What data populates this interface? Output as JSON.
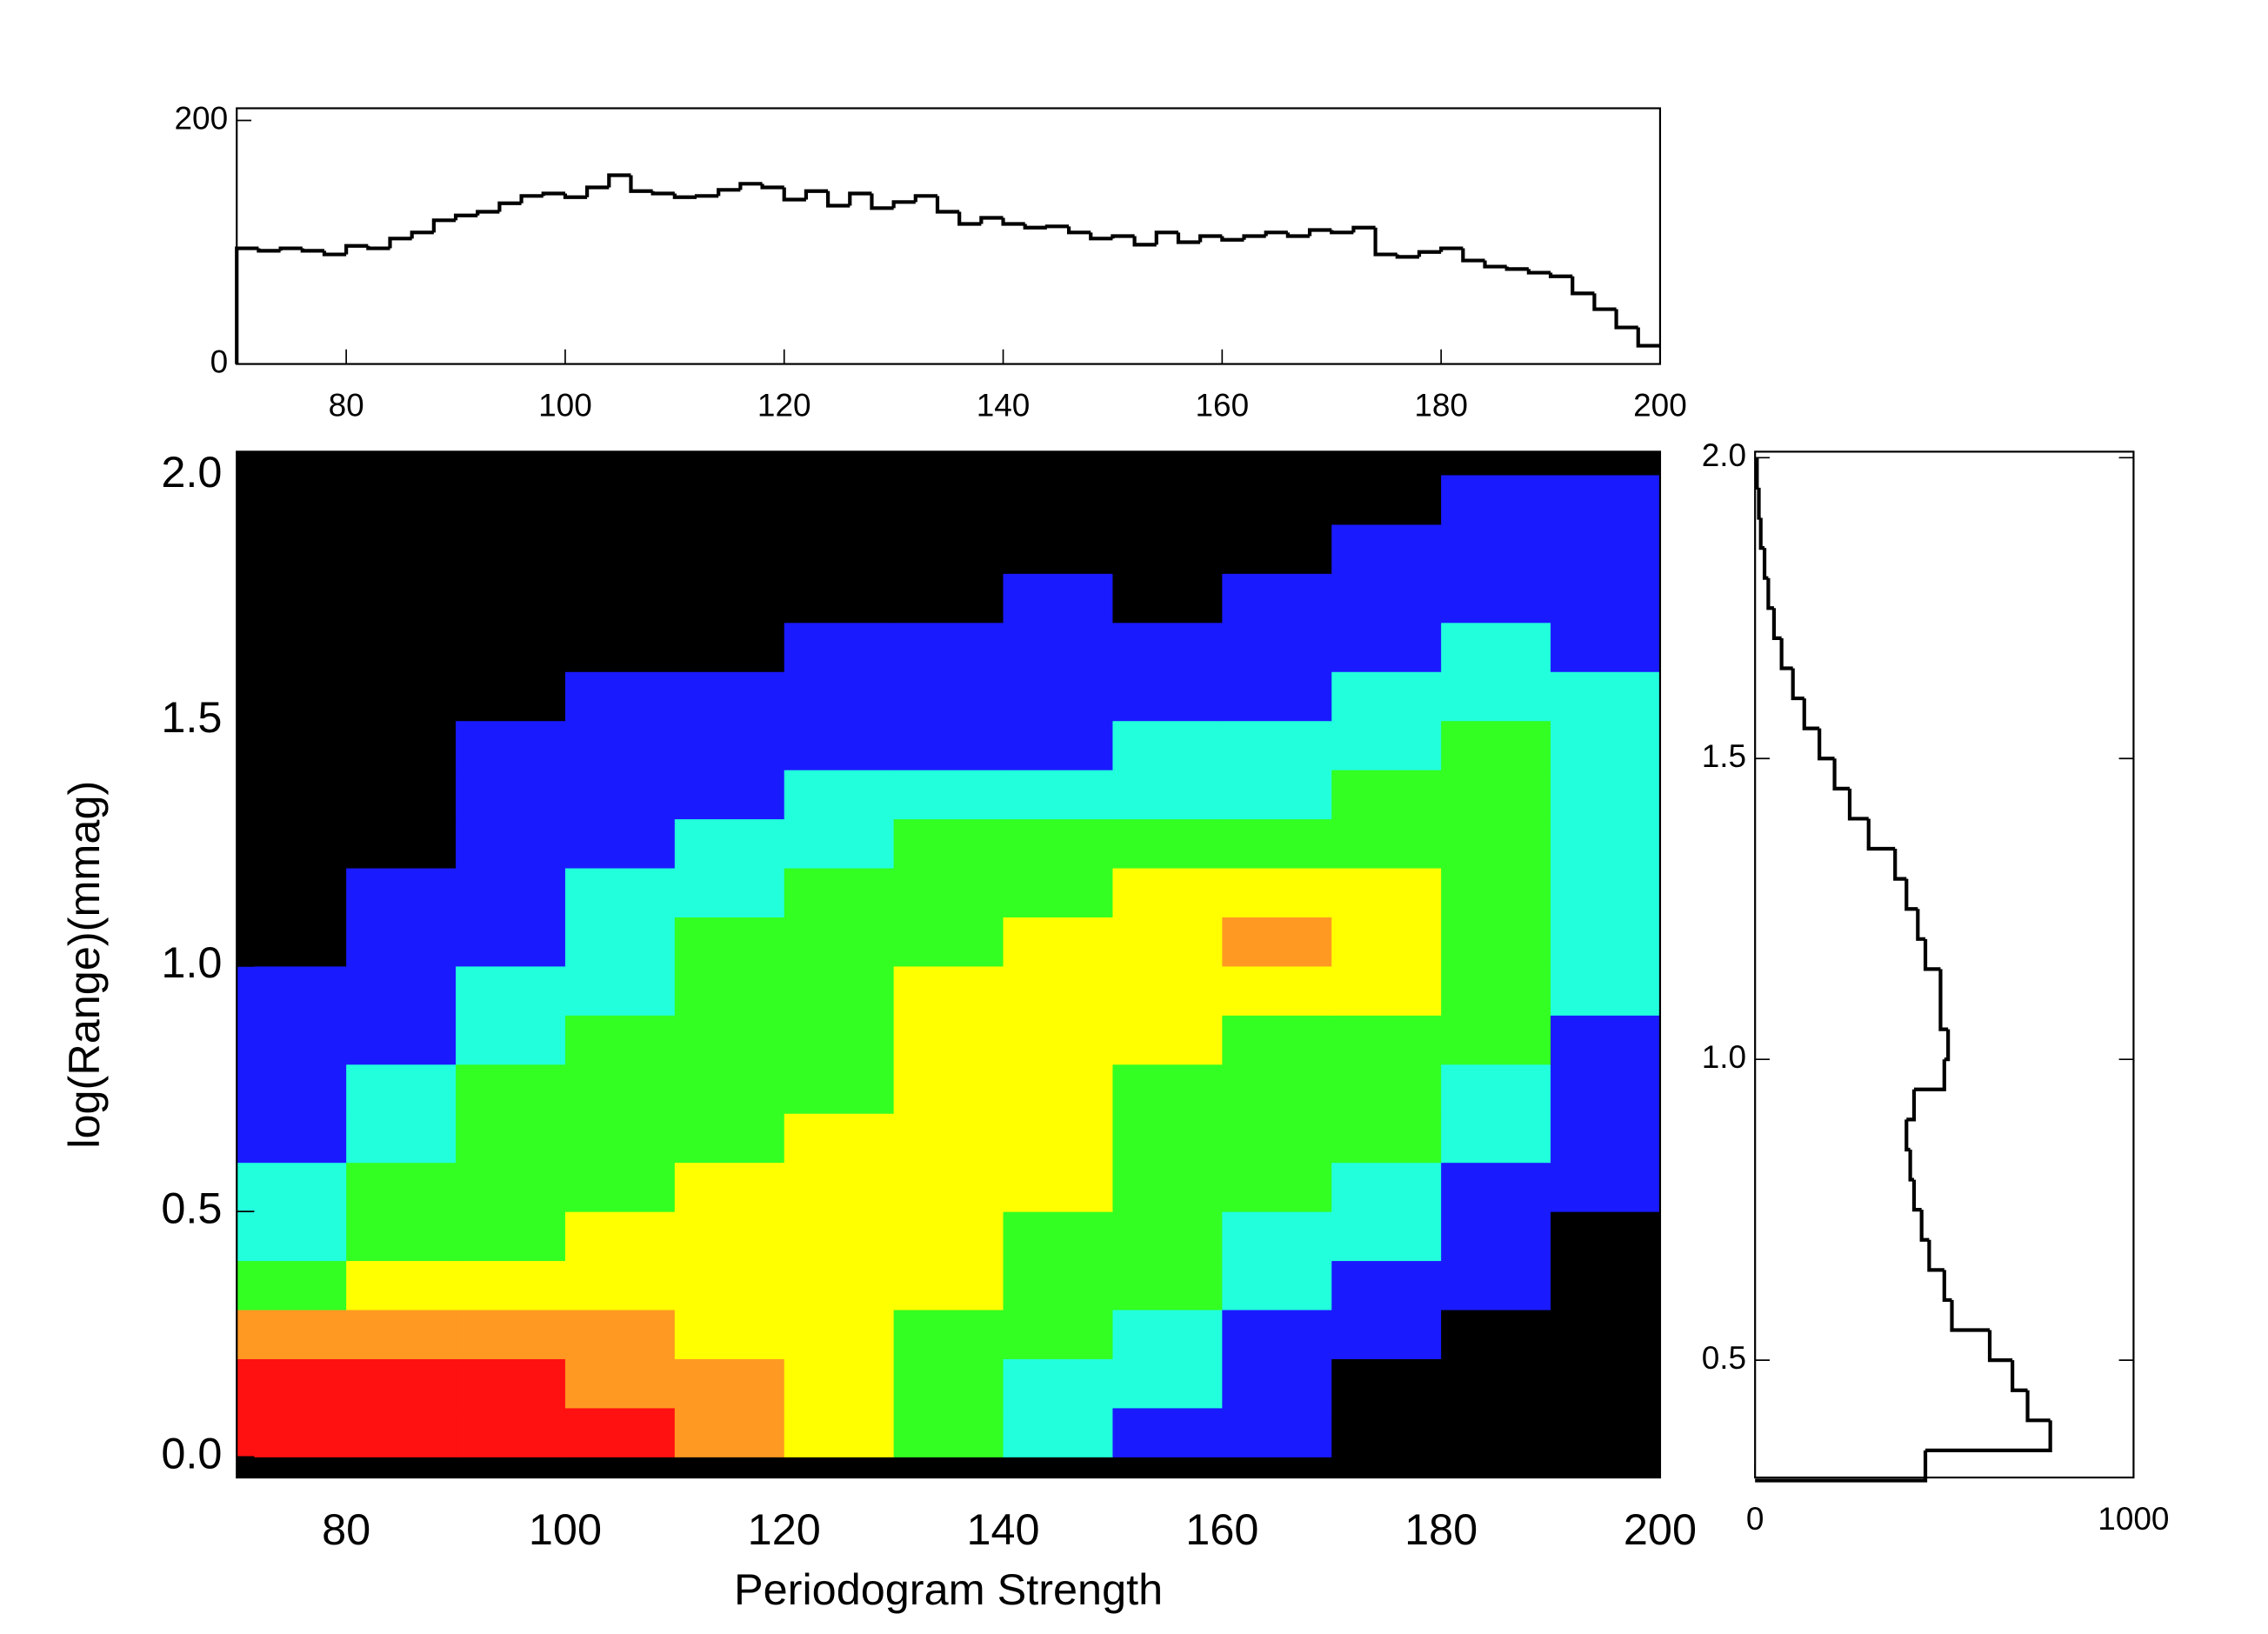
{
  "chart_data": [
    {
      "type": "heatmap",
      "x_label": "Periodogram Strength",
      "y_label": "log(Range)(mmag)",
      "xlim": [
        70,
        200
      ],
      "ylim": [
        -0.042,
        2.048
      ],
      "xticks": [
        80,
        100,
        120,
        140,
        160,
        180,
        200
      ],
      "yticks": [
        {
          "value": 0,
          "label": "0.0"
        },
        0.5,
        {
          "value": 1,
          "label": "1.0"
        },
        1.5,
        {
          "value": 2,
          "label": "2.0"
        }
      ],
      "x_bins": [
        70,
        80,
        90,
        100,
        110,
        120,
        130,
        140,
        150,
        160,
        170,
        180,
        190,
        200
      ],
      "y_bins": [
        0,
        0.1,
        0.2,
        0.3,
        0.4,
        0.5,
        0.6,
        0.7,
        0.8,
        0.9,
        1.0,
        1.1,
        1.2,
        1.3,
        1.4,
        1.5,
        1.6,
        1.7,
        1.8,
        1.9,
        2.0
      ],
      "background": "#000000",
      "colors": [
        "#000000",
        "#1a1aff",
        "#22ffdd",
        "#33ff22",
        "#ffff00",
        "#ff9922",
        "#ff1111"
      ],
      "levels": [
        [
          6,
          6,
          6,
          6,
          5,
          4,
          3,
          2,
          1,
          1,
          0,
          0,
          0
        ],
        [
          6,
          6,
          6,
          5,
          5,
          4,
          3,
          2,
          2,
          1,
          0,
          0,
          0
        ],
        [
          5,
          5,
          5,
          5,
          4,
          4,
          3,
          3,
          2,
          1,
          1,
          0,
          0
        ],
        [
          3,
          4,
          4,
          4,
          4,
          4,
          4,
          3,
          3,
          2,
          1,
          1,
          0
        ],
        [
          2,
          3,
          3,
          4,
          4,
          4,
          4,
          3,
          3,
          2,
          2,
          1,
          0
        ],
        [
          2,
          3,
          3,
          3,
          4,
          4,
          4,
          4,
          3,
          3,
          2,
          1,
          1
        ],
        [
          1,
          2,
          3,
          3,
          3,
          4,
          4,
          4,
          3,
          3,
          3,
          2,
          1
        ],
        [
          1,
          2,
          3,
          3,
          3,
          3,
          4,
          4,
          3,
          3,
          3,
          2,
          1
        ],
        [
          1,
          1,
          2,
          3,
          3,
          3,
          4,
          4,
          4,
          3,
          3,
          3,
          1
        ],
        [
          1,
          1,
          2,
          2,
          3,
          3,
          4,
          4,
          4,
          4,
          4,
          3,
          2
        ],
        [
          0,
          1,
          1,
          2,
          3,
          3,
          3,
          4,
          4,
          5,
          4,
          3,
          2
        ],
        [
          0,
          1,
          1,
          2,
          2,
          3,
          3,
          3,
          4,
          4,
          4,
          3,
          2
        ],
        [
          0,
          0,
          1,
          1,
          2,
          2,
          3,
          3,
          3,
          3,
          3,
          3,
          2
        ],
        [
          0,
          0,
          1,
          1,
          1,
          2,
          2,
          2,
          2,
          2,
          3,
          3,
          2
        ],
        [
          0,
          0,
          1,
          1,
          1,
          1,
          1,
          1,
          2,
          2,
          2,
          3,
          2
        ],
        [
          0,
          0,
          0,
          1,
          1,
          1,
          1,
          1,
          1,
          1,
          2,
          2,
          2
        ],
        [
          0,
          0,
          0,
          0,
          0,
          1,
          1,
          1,
          1,
          1,
          1,
          2,
          1
        ],
        [
          0,
          0,
          0,
          0,
          0,
          0,
          0,
          1,
          0,
          1,
          1,
          1,
          1
        ],
        [
          0,
          0,
          0,
          0,
          0,
          0,
          0,
          0,
          0,
          0,
          1,
          1,
          1
        ],
        [
          0,
          0,
          0,
          0,
          0,
          0,
          0,
          0,
          0,
          0,
          0,
          1,
          1
        ]
      ]
    },
    {
      "type": "histogram",
      "orientation": "vertical",
      "color": "#000000",
      "xlim": [
        70,
        200
      ],
      "ylim": [
        0,
        210
      ],
      "xticks": [
        80,
        100,
        120,
        140,
        160,
        180,
        200
      ],
      "yticks": [
        0,
        200
      ],
      "bins": [
        70,
        72,
        74,
        76,
        78,
        80,
        82,
        84,
        86,
        88,
        90,
        92,
        94,
        96,
        98,
        100,
        102,
        104,
        106,
        108,
        110,
        112,
        114,
        116,
        118,
        120,
        122,
        124,
        126,
        128,
        130,
        132,
        134,
        136,
        138,
        140,
        142,
        144,
        146,
        148,
        150,
        152,
        154,
        156,
        158,
        160,
        162,
        164,
        166,
        168,
        170,
        172,
        174,
        176,
        178,
        180,
        182,
        184,
        186,
        188,
        190,
        192,
        194,
        196,
        198,
        200
      ],
      "values": [
        95,
        93,
        95,
        93,
        90,
        97,
        95,
        103,
        108,
        118,
        122,
        125,
        132,
        138,
        140,
        137,
        145,
        155,
        142,
        140,
        137,
        138,
        143,
        148,
        145,
        135,
        142,
        130,
        140,
        128,
        133,
        138,
        125,
        115,
        120,
        115,
        112,
        113,
        108,
        103,
        105,
        98,
        108,
        100,
        105,
        102,
        105,
        108,
        105,
        110,
        108,
        112,
        90,
        88,
        92,
        95,
        85,
        80,
        78,
        75,
        72,
        58,
        45,
        30,
        15
      ]
    },
    {
      "type": "histogram",
      "orientation": "horizontal",
      "color": "#000000",
      "xlim": [
        0,
        1000
      ],
      "ylim": [
        0.305,
        2.01
      ],
      "xticks": [
        0,
        1000
      ],
      "yticks": [
        0.5,
        {
          "value": 1,
          "label": "1.0"
        },
        1.5,
        {
          "value": 2,
          "label": "2.0"
        }
      ],
      "bins": [
        0.3,
        0.35,
        0.4,
        0.45,
        0.5,
        0.55,
        0.6,
        0.65,
        0.7,
        0.75,
        0.8,
        0.85,
        0.9,
        0.95,
        1.0,
        1.05,
        1.1,
        1.15,
        1.2,
        1.25,
        1.3,
        1.35,
        1.4,
        1.45,
        1.5,
        1.55,
        1.6,
        1.65,
        1.7,
        1.75,
        1.8,
        1.85,
        1.9,
        1.95,
        2.0
      ],
      "values": [
        450,
        780,
        720,
        680,
        620,
        520,
        500,
        460,
        440,
        420,
        410,
        400,
        420,
        500,
        510,
        490,
        490,
        450,
        430,
        400,
        370,
        300,
        250,
        210,
        170,
        130,
        100,
        70,
        50,
        35,
        25,
        15,
        10,
        5
      ]
    }
  ]
}
